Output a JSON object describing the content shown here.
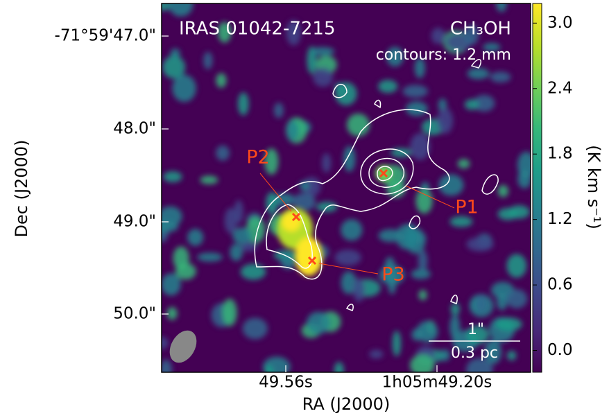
{
  "title": "IRAS 01042-7215",
  "molecule": "CH₃OH",
  "contours_label": "contours: 1.2 mm",
  "x_label": "RA (J2000)",
  "y_label": "Dec (J2000)",
  "x_tick_labels": [
    "49.56s",
    "1h05m49.20s"
  ],
  "y_tick_labels": [
    "-71°59'47.0\"",
    "48.0\"",
    "49.0\"",
    "50.0\""
  ],
  "colorbar": {
    "label": "(K km s⁻¹)",
    "lim": [
      -0.2,
      3.18
    ],
    "ticks": [
      {
        "value": 0,
        "label": "0.0"
      },
      {
        "value": 0.6,
        "label": "0.6"
      },
      {
        "value": 1.2,
        "label": "1.2"
      },
      {
        "value": 1.8,
        "label": "1.8"
      },
      {
        "value": 2.4,
        "label": "2.4"
      },
      {
        "value": 3,
        "label": "3.0"
      }
    ]
  },
  "peaks": [
    "P1",
    "P2",
    "P3"
  ],
  "scale_bar": {
    "angular": "1\"",
    "physical": "0.3 pc"
  }
}
